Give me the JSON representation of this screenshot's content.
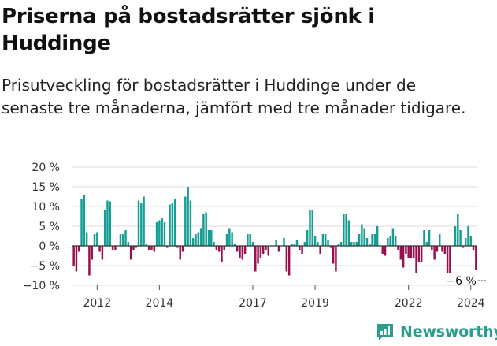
{
  "header": {
    "title": "Priserna på bostadsrätter sjönk i Huddinge",
    "subtitle": "Prisutveckling för bostadsrätter i Huddinge under de senaste tre månaderna, jämfört med tre månader tidigare."
  },
  "brand": {
    "name": "Newsworthy"
  },
  "colors": {
    "positive": "#159e92",
    "negative": "#990f4d",
    "grid": "#dddddd",
    "zero": "#333333"
  },
  "chart_data": {
    "type": "bar",
    "title": "",
    "xlabel": "",
    "ylabel": "",
    "ylim": [
      -10,
      20
    ],
    "y_ticks": [
      20,
      15,
      10,
      5,
      0,
      -5,
      -10
    ],
    "y_tick_labels": [
      "20 %",
      "15 %",
      "10 %",
      "5 %",
      "0 %",
      "−5 %",
      "−10 %"
    ],
    "x_tick_labels": [
      {
        "label": "2012",
        "date": "2012-01"
      },
      {
        "label": "2014",
        "date": "2014-01"
      },
      {
        "label": "2017",
        "date": "2017-01"
      },
      {
        "label": "2019",
        "date": "2019-01"
      },
      {
        "label": "2022",
        "date": "2022-01"
      },
      {
        "label": "2024",
        "date": "2024-01"
      }
    ],
    "annotation": {
      "label": "−6 %",
      "date": "2024-08",
      "value": -6
    },
    "start": "2011-04",
    "values": [
      -5,
      -6.5,
      -1.5,
      12,
      13,
      3.5,
      -7.5,
      -3.5,
      3,
      3.5,
      -1.5,
      -3.5,
      9,
      11.5,
      11.3,
      -1,
      -1,
      0,
      3,
      3,
      4,
      1,
      -3.5,
      -1,
      -0.5,
      11.5,
      11,
      12.5,
      0.5,
      -1,
      -1,
      -1.5,
      6,
      6.5,
      7,
      6,
      -0.5,
      10.5,
      11,
      12,
      -0.5,
      -3.5,
      -1.5,
      12.5,
      15,
      11.5,
      2,
      3,
      3.5,
      4.5,
      8,
      8.5,
      4,
      4,
      1,
      -1,
      -1.5,
      -4,
      -1,
      3,
      4.5,
      3.5,
      0.5,
      -1.5,
      -3,
      -3.5,
      -2,
      3,
      3,
      1,
      -6.5,
      -4.5,
      -3,
      -2,
      -1,
      -2.5,
      0,
      0,
      1.5,
      -1.5,
      0,
      2,
      -6.5,
      -7.5,
      0.5,
      0.5,
      1.5,
      -1,
      -2,
      1,
      4,
      9,
      9,
      2.5,
      1,
      -2,
      3,
      3,
      1.5,
      -0.5,
      -4.5,
      -6.5,
      0.5,
      1,
      8,
      8,
      6.5,
      1,
      1,
      1,
      3,
      5.5,
      4.5,
      2,
      0.5,
      3,
      3,
      5,
      0,
      -2,
      -2.5,
      2,
      2.5,
      4.5,
      2.5,
      -1,
      -3.5,
      -5.5,
      -2,
      -3,
      -3,
      -3,
      -7,
      -4,
      -4,
      4,
      1,
      4,
      -1,
      -3.5,
      -1.5,
      3,
      -1.5,
      -2,
      -7,
      -7,
      0,
      5,
      8,
      4,
      -0.5,
      2,
      5,
      2.5,
      -1,
      -6
    ]
  }
}
